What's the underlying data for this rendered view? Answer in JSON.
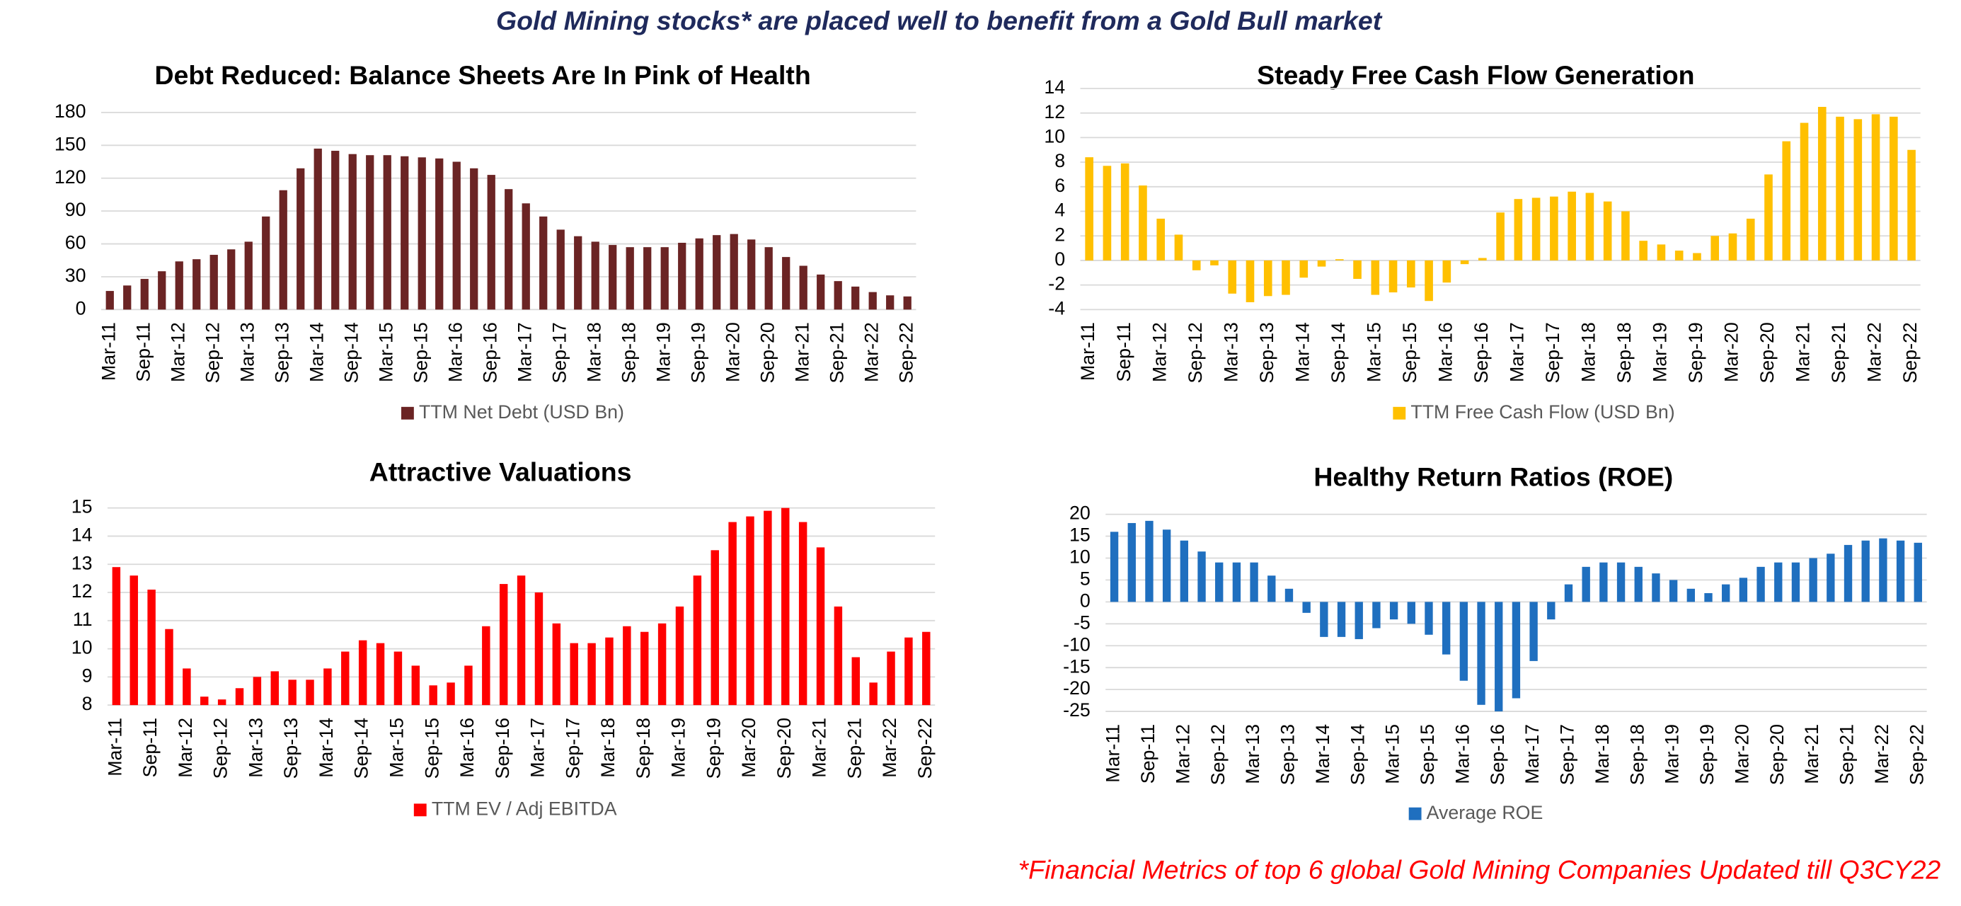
{
  "header": "Gold Mining stocks* are placed well to benefit from a Gold Bull market",
  "footnote": "*Financial Metrics of top 6 global Gold Mining Companies Updated till Q3CY22",
  "chart_data": [
    {
      "type": "bar",
      "title": "Debt Reduced: Balance Sheets Are In Pink of Health",
      "categories": [
        "Mar-11",
        null,
        "Sep-11",
        null,
        "Mar-12",
        null,
        "Sep-12",
        null,
        "Mar-13",
        null,
        "Sep-13",
        null,
        "Mar-14",
        null,
        "Sep-14",
        null,
        "Mar-15",
        null,
        "Sep-15",
        null,
        "Mar-16",
        null,
        "Sep-16",
        null,
        "Mar-17",
        null,
        "Sep-17",
        null,
        "Mar-18",
        null,
        "Sep-18",
        null,
        "Mar-19",
        null,
        "Sep-19",
        null,
        "Mar-20",
        null,
        "Sep-20",
        null,
        "Mar-21",
        null,
        "Sep-21",
        null,
        "Mar-22",
        null,
        "Sep-22"
      ],
      "series": [
        {
          "name": "TTM Net Debt (USD Bn)",
          "color": "#6b2424",
          "values": [
            17,
            22,
            28,
            35,
            44,
            46,
            50,
            55,
            62,
            85,
            109,
            129,
            147,
            145,
            142,
            141,
            141,
            140,
            139,
            138,
            135,
            129,
            123,
            110,
            97,
            85,
            73,
            67,
            62,
            59,
            57,
            57,
            57,
            61,
            65,
            68,
            69,
            64,
            57,
            48,
            40,
            32,
            26,
            21,
            16,
            13,
            12
          ]
        }
      ],
      "ylim": [
        0,
        180
      ],
      "yticks": [
        0,
        30,
        60,
        90,
        120,
        150,
        180
      ],
      "grid": true
    },
    {
      "type": "bar",
      "title": "Steady Free Cash Flow Generation",
      "categories": [
        "Mar-11",
        null,
        "Sep-11",
        null,
        "Mar-12",
        null,
        "Sep-12",
        null,
        "Mar-13",
        null,
        "Sep-13",
        null,
        "Mar-14",
        null,
        "Sep-14",
        null,
        "Mar-15",
        null,
        "Sep-15",
        null,
        "Mar-16",
        null,
        "Sep-16",
        null,
        "Mar-17",
        null,
        "Sep-17",
        null,
        "Mar-18",
        null,
        "Sep-18",
        null,
        "Mar-19",
        null,
        "Sep-19",
        null,
        "Mar-20",
        null,
        "Sep-20",
        null,
        "Mar-21",
        null,
        "Sep-21",
        null,
        "Mar-22",
        null,
        "Sep-22"
      ],
      "series": [
        {
          "name": "TTM Free Cash Flow (USD Bn)",
          "color": "#ffc000",
          "values": [
            8.4,
            7.7,
            7.9,
            6.1,
            3.4,
            2.1,
            -0.8,
            -0.4,
            -2.7,
            -3.4,
            -2.9,
            -2.8,
            -1.4,
            -0.5,
            0.1,
            -1.5,
            -2.8,
            -2.6,
            -2.2,
            -3.3,
            -1.8,
            -0.3,
            0.2,
            3.9,
            5.0,
            5.1,
            5.2,
            5.6,
            5.5,
            4.8,
            4.0,
            1.6,
            1.3,
            0.8,
            0.6,
            2.0,
            2.2,
            3.4,
            7.0,
            9.7,
            11.2,
            12.5,
            11.7,
            11.5,
            11.9,
            11.7,
            9.0
          ]
        }
      ],
      "ylim": [
        -4,
        14
      ],
      "yticks": [
        -4,
        -2,
        0,
        2,
        4,
        6,
        8,
        10,
        12,
        14
      ],
      "grid": true
    },
    {
      "type": "bar",
      "title": "Attractive Valuations",
      "categories": [
        "Mar-11",
        null,
        "Sep-11",
        null,
        "Mar-12",
        null,
        "Sep-12",
        null,
        "Mar-13",
        null,
        "Sep-13",
        null,
        "Mar-14",
        null,
        "Sep-14",
        null,
        "Mar-15",
        null,
        "Sep-15",
        null,
        "Mar-16",
        null,
        "Sep-16",
        null,
        "Mar-17",
        null,
        "Sep-17",
        null,
        "Mar-18",
        null,
        "Sep-18",
        null,
        "Mar-19",
        null,
        "Sep-19",
        null,
        "Mar-20",
        null,
        "Sep-20",
        null,
        "Mar-21",
        null,
        "Sep-21",
        null,
        "Mar-22",
        null,
        "Sep-22"
      ],
      "series": [
        {
          "name": "TTM EV / Adj EBITDA",
          "color": "#ff0000",
          "values": [
            12.9,
            12.6,
            12.1,
            10.7,
            9.3,
            8.3,
            8.2,
            8.6,
            9.0,
            9.2,
            8.9,
            8.9,
            9.3,
            9.9,
            10.3,
            10.2,
            9.9,
            9.4,
            8.7,
            8.8,
            9.4,
            10.8,
            12.3,
            12.6,
            12.0,
            10.9,
            10.2,
            10.2,
            10.4,
            10.8,
            10.6,
            10.9,
            11.5,
            12.6,
            13.5,
            14.5,
            14.7,
            14.9,
            15.0,
            14.5,
            13.6,
            11.5,
            9.7,
            8.8,
            9.9,
            10.4,
            10.6
          ]
        }
      ],
      "ylim": [
        8,
        15
      ],
      "yticks": [
        8,
        9,
        10,
        11,
        12,
        13,
        14,
        15
      ],
      "grid": true
    },
    {
      "type": "bar",
      "title": "Healthy Return Ratios (ROE)",
      "categories": [
        "Mar-11",
        null,
        "Sep-11",
        null,
        "Mar-12",
        null,
        "Sep-12",
        null,
        "Mar-13",
        null,
        "Sep-13",
        null,
        "Mar-14",
        null,
        "Sep-14",
        null,
        "Mar-15",
        null,
        "Sep-15",
        null,
        "Mar-16",
        null,
        "Sep-16",
        null,
        "Mar-17",
        null,
        "Sep-17",
        null,
        "Mar-18",
        null,
        "Sep-18",
        null,
        "Mar-19",
        null,
        "Sep-19",
        null,
        "Mar-20",
        null,
        "Sep-20",
        null,
        "Mar-21",
        null,
        "Sep-21",
        null,
        "Mar-22",
        null,
        "Sep-22"
      ],
      "series": [
        {
          "name": "Average ROE",
          "color": "#1f6fbf",
          "values": [
            16,
            18,
            18.5,
            16.5,
            14,
            11.5,
            9,
            9,
            9,
            6,
            3,
            -2.5,
            -8,
            -8,
            -8.5,
            -6,
            -4,
            -5,
            -7.5,
            -12,
            -18,
            -23.5,
            -25,
            -22,
            -13.5,
            -4,
            4,
            8,
            9,
            9,
            8,
            6.5,
            5,
            3,
            2,
            4,
            5.5,
            8,
            9,
            9,
            10,
            11,
            13,
            14,
            14.5,
            14,
            13.5
          ]
        }
      ],
      "ylim": [
        -25,
        20
      ],
      "yticks": [
        -25,
        -20,
        -15,
        -10,
        -5,
        0,
        5,
        10,
        15,
        20
      ],
      "grid": true
    }
  ]
}
